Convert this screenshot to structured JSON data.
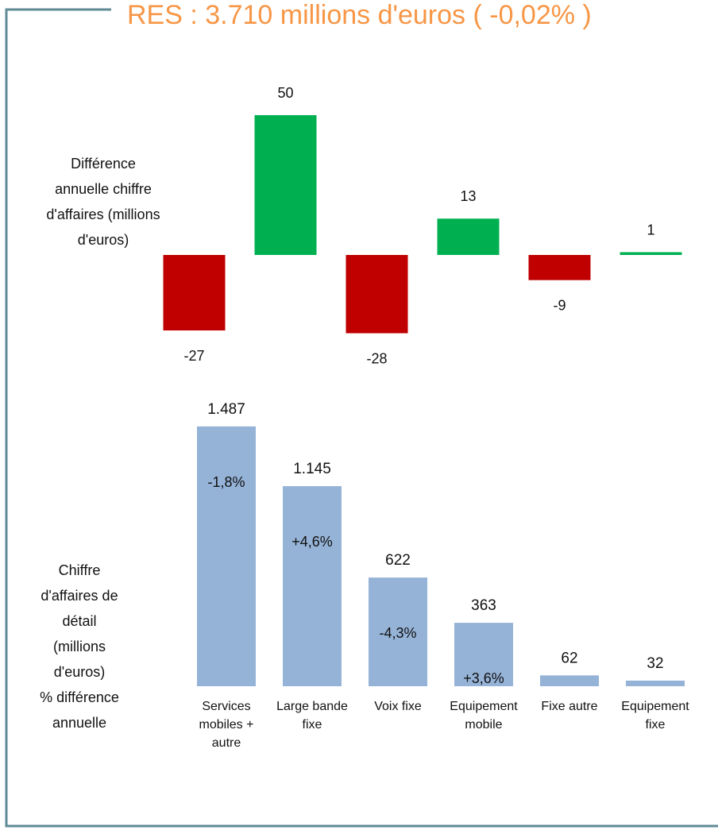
{
  "title": "RES : 3.710 millions d'euros ( -0,02% )",
  "chart_data": [
    {
      "type": "bar",
      "y_label": "Différence annuelle chiffre d'affaires (millions d'euros)",
      "values": [
        -27,
        50,
        -28,
        13,
        -9,
        1
      ],
      "positive_color": "#00b050",
      "negative_color": "#c00000",
      "ylim": [
        -30,
        55
      ]
    },
    {
      "type": "bar",
      "y_label": [
        "Chiffre",
        "d'affaires de",
        "détail",
        "(millions",
        "d'euros)",
        "% différence",
        "annuelle"
      ],
      "categories": [
        "Services mobiles + autre",
        "Large bande fixe",
        "Voix fixe",
        "Equipement mobile",
        "Fixe autre",
        "Equipement fixe"
      ],
      "values": [
        1487,
        1145,
        622,
        363,
        62,
        32
      ],
      "value_labels": [
        "1.487",
        "1.145",
        "622",
        "363",
        "62",
        "32"
      ],
      "change_labels": [
        "-1,8%",
        "+4,6%",
        "-4,3%",
        "+3,6%"
      ],
      "color": "#95b3d7",
      "ylim": [
        0,
        1600
      ]
    }
  ]
}
